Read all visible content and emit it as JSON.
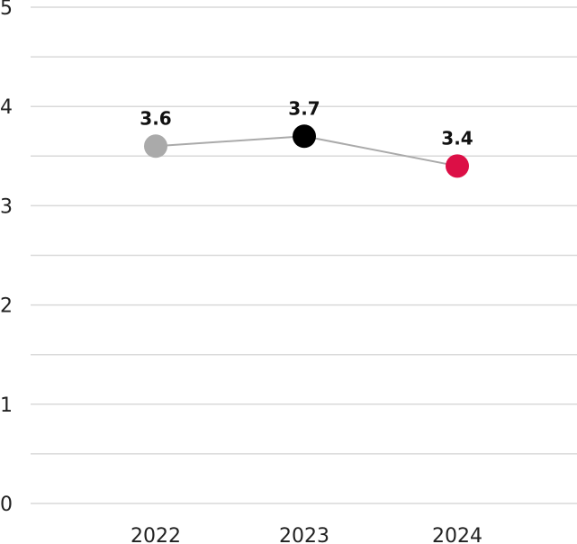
{
  "chart_data": {
    "type": "line",
    "categories": [
      "2022",
      "2023",
      "2024"
    ],
    "values": [
      3.6,
      3.7,
      3.4
    ],
    "data_labels": [
      "3.6",
      "3.7",
      "3.4"
    ],
    "point_colors": [
      "#aaaaaa",
      "#000000",
      "#dc0f46"
    ],
    "line_color": "#aaaaaa",
    "grid_color": "#d9d9d9",
    "ylim": [
      0,
      5
    ],
    "yticks": [
      "0",
      "1",
      "2",
      "3",
      "4",
      "5"
    ],
    "grid": true,
    "title": "",
    "xlabel": "",
    "ylabel": ""
  }
}
